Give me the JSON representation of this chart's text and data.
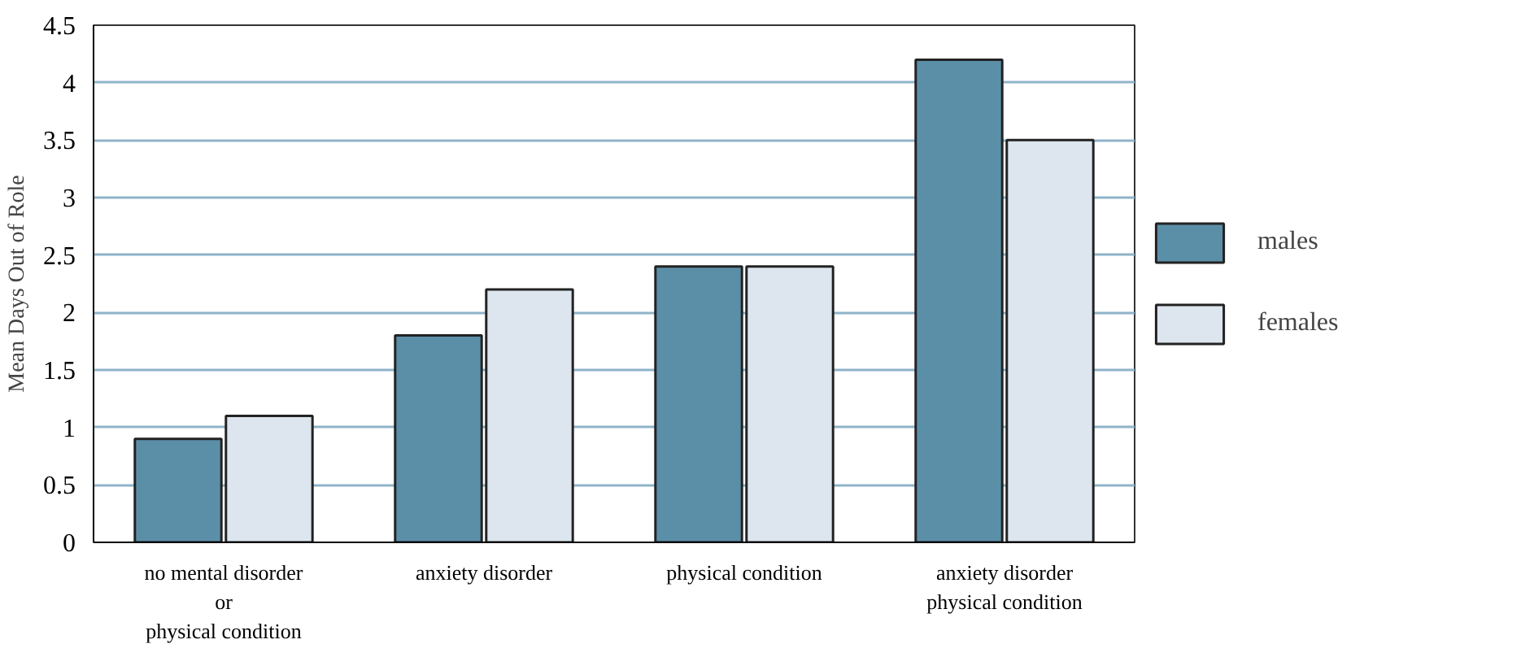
{
  "chart_data": {
    "type": "bar",
    "ylabel": "Mean Days Out of Role",
    "categories": [
      "no mental disorder\nor\nphysical condition",
      "anxiety disorder",
      "physical condition",
      "anxiety disorder\nphysical condition"
    ],
    "series": [
      {
        "name": "males",
        "color": "#5b8fa8",
        "values": [
          0.9,
          1.8,
          2.4,
          4.2
        ]
      },
      {
        "name": "females",
        "color": "#dde6ee",
        "values": [
          1.1,
          2.2,
          2.4,
          3.5
        ]
      }
    ],
    "ylim": [
      0,
      4.5
    ],
    "yticks": [
      0,
      0.5,
      1,
      1.5,
      2,
      2.5,
      3,
      3.5,
      4,
      4.5
    ],
    "grid": "y",
    "legend": "right"
  }
}
